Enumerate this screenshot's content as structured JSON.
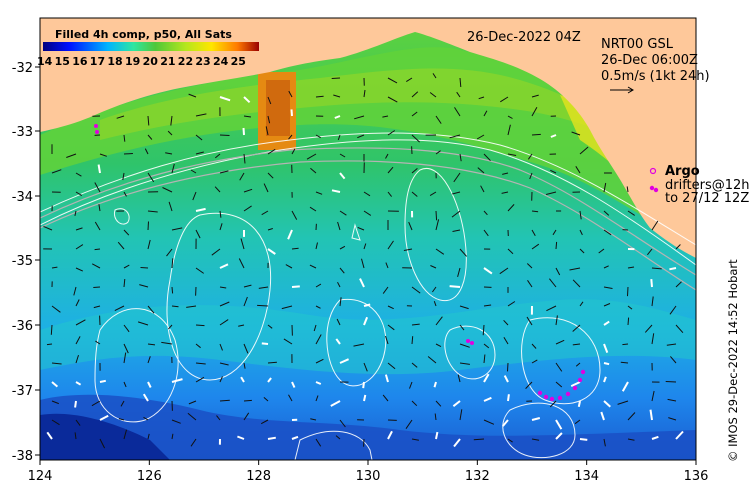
{
  "map": {
    "colorbar_title": "Filled 4h comp, p50, All Sats",
    "colorbar_ticks": [
      "14",
      "15",
      "16",
      "17",
      "18",
      "19",
      "20",
      "21",
      "22",
      "23",
      "24",
      "25"
    ],
    "date_label": "26-Dec-2022 04Z",
    "current_source": "NRT00 GSL",
    "current_date": "26-Dec 06:00Z",
    "current_scale": "0.5m/s (1kt 24h)",
    "argo_label": "Argo",
    "drifters_label": "drifters@12h",
    "drifters_to": "to 27/12 12Z",
    "credit": "© IMOS 29-Dec-2022 14:52 Hobart",
    "x_ticks": [
      "124",
      "126",
      "128",
      "130",
      "132",
      "134",
      "136"
    ],
    "y_ticks": [
      "-32",
      "-33",
      "-34",
      "-35",
      "-36",
      "-37",
      "-38"
    ]
  },
  "colors": {
    "land": "#fec89a",
    "warm": "#f5a623",
    "hot": "#e0660a",
    "green": "#4ec73a",
    "lime": "#8ad62c",
    "cyan": "#1ec8d0",
    "blue": "#1e8ff0",
    "deep": "#1246b4",
    "argo": "#e000e0"
  }
}
